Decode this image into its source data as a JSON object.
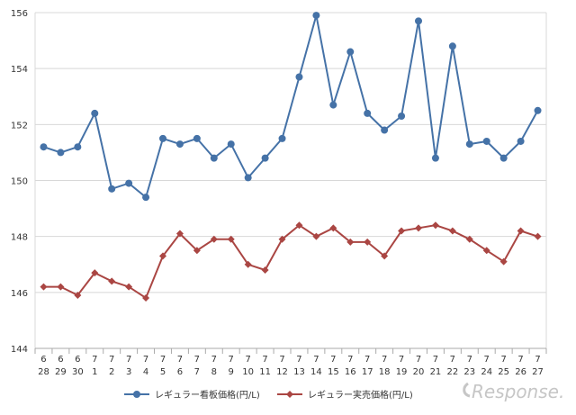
{
  "chart_data": {
    "type": "line",
    "x_top": [
      "6",
      "6",
      "6",
      "7",
      "7",
      "7",
      "7",
      "7",
      "7",
      "7",
      "7",
      "7",
      "7",
      "7",
      "7",
      "7",
      "7",
      "7",
      "7",
      "7",
      "7",
      "7",
      "7",
      "7",
      "7",
      "7",
      "7",
      "7",
      "7",
      "7"
    ],
    "x_bottom": [
      "28",
      "29",
      "30",
      "1",
      "2",
      "3",
      "4",
      "5",
      "6",
      "7",
      "8",
      "9",
      "10",
      "11",
      "12",
      "13",
      "14",
      "15",
      "16",
      "17",
      "18",
      "19",
      "20",
      "21",
      "22",
      "23",
      "24",
      "25",
      "26",
      "27"
    ],
    "ylim": [
      144,
      156
    ],
    "yticks": [
      "144",
      "146",
      "148",
      "150",
      "152",
      "154",
      "156"
    ],
    "grid": true,
    "legend_position": "bottom",
    "series": [
      {
        "name": "レギュラー看板価格(円/L)",
        "color": "#4572a7",
        "marker": "circle",
        "values": [
          151.2,
          151.0,
          151.2,
          152.4,
          149.7,
          149.9,
          149.4,
          151.5,
          151.3,
          151.5,
          150.8,
          151.3,
          150.1,
          150.8,
          151.5,
          153.7,
          155.9,
          152.7,
          154.6,
          152.4,
          151.8,
          152.3,
          155.7,
          150.8,
          154.8,
          151.3,
          151.4,
          150.8,
          151.4,
          152.5
        ]
      },
      {
        "name": "レギュラー実売価格(円/L)",
        "color": "#aa4643",
        "marker": "diamond",
        "values": [
          146.2,
          146.2,
          145.9,
          146.7,
          146.4,
          146.2,
          145.8,
          147.3,
          148.1,
          147.5,
          147.9,
          147.9,
          147.0,
          146.8,
          147.9,
          148.4,
          148.0,
          148.3,
          147.8,
          147.8,
          147.3,
          148.2,
          148.3,
          148.4,
          148.2,
          147.9,
          147.5,
          147.1,
          148.2,
          148.0
        ]
      }
    ]
  },
  "watermark": {
    "text": "Response."
  }
}
